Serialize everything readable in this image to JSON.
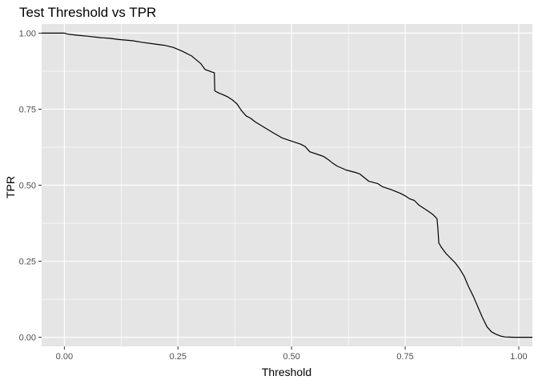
{
  "chart_data": {
    "type": "line",
    "title": "Test Threshold vs TPR",
    "xlabel": "Threshold",
    "ylabel": "TPR",
    "xlim": [
      -0.05,
      1.03
    ],
    "ylim": [
      -0.03,
      1.03
    ],
    "grid": true,
    "legend": "none",
    "x_ticks": [
      0.0,
      0.25,
      0.5,
      0.75,
      1.0
    ],
    "x_tick_labels": [
      "0.00",
      "0.25",
      "0.50",
      "0.75",
      "1.00"
    ],
    "y_ticks": [
      0.0,
      0.25,
      0.5,
      0.75,
      1.0
    ],
    "y_tick_labels": [
      "0.00",
      "0.25",
      "0.50",
      "0.75",
      "1.00"
    ],
    "colors": {
      "panel": "#e5e5e5",
      "grid": "#ffffff",
      "line": "#000000",
      "tick": "#333333"
    },
    "series": [
      {
        "values": [
          [
            -0.05,
            1.0
          ],
          [
            0.0,
            1.0
          ],
          [
            0.01,
            0.996
          ],
          [
            0.03,
            0.993
          ],
          [
            0.05,
            0.99
          ],
          [
            0.08,
            0.985
          ],
          [
            0.1,
            0.983
          ],
          [
            0.12,
            0.979
          ],
          [
            0.15,
            0.975
          ],
          [
            0.17,
            0.97
          ],
          [
            0.2,
            0.964
          ],
          [
            0.22,
            0.96
          ],
          [
            0.24,
            0.953
          ],
          [
            0.26,
            0.94
          ],
          [
            0.28,
            0.925
          ],
          [
            0.3,
            0.9
          ],
          [
            0.31,
            0.88
          ],
          [
            0.32,
            0.875
          ],
          [
            0.325,
            0.872
          ],
          [
            0.33,
            0.87
          ],
          [
            0.331,
            0.81
          ],
          [
            0.34,
            0.803
          ],
          [
            0.35,
            0.797
          ],
          [
            0.36,
            0.79
          ],
          [
            0.37,
            0.78
          ],
          [
            0.38,
            0.767
          ],
          [
            0.39,
            0.745
          ],
          [
            0.4,
            0.728
          ],
          [
            0.41,
            0.72
          ],
          [
            0.42,
            0.708
          ],
          [
            0.44,
            0.69
          ],
          [
            0.46,
            0.672
          ],
          [
            0.48,
            0.655
          ],
          [
            0.5,
            0.645
          ],
          [
            0.52,
            0.635
          ],
          [
            0.53,
            0.627
          ],
          [
            0.54,
            0.61
          ],
          [
            0.56,
            0.6
          ],
          [
            0.57,
            0.595
          ],
          [
            0.58,
            0.585
          ],
          [
            0.59,
            0.573
          ],
          [
            0.6,
            0.563
          ],
          [
            0.62,
            0.55
          ],
          [
            0.64,
            0.542
          ],
          [
            0.65,
            0.537
          ],
          [
            0.66,
            0.525
          ],
          [
            0.67,
            0.513
          ],
          [
            0.69,
            0.505
          ],
          [
            0.7,
            0.495
          ],
          [
            0.72,
            0.485
          ],
          [
            0.74,
            0.473
          ],
          [
            0.75,
            0.465
          ],
          [
            0.76,
            0.455
          ],
          [
            0.77,
            0.45
          ],
          [
            0.78,
            0.435
          ],
          [
            0.79,
            0.425
          ],
          [
            0.8,
            0.415
          ],
          [
            0.81,
            0.405
          ],
          [
            0.82,
            0.39
          ],
          [
            0.822,
            0.36
          ],
          [
            0.824,
            0.31
          ],
          [
            0.83,
            0.295
          ],
          [
            0.84,
            0.275
          ],
          [
            0.85,
            0.26
          ],
          [
            0.86,
            0.245
          ],
          [
            0.87,
            0.225
          ],
          [
            0.88,
            0.2
          ],
          [
            0.89,
            0.165
          ],
          [
            0.9,
            0.135
          ],
          [
            0.91,
            0.1
          ],
          [
            0.92,
            0.065
          ],
          [
            0.93,
            0.035
          ],
          [
            0.94,
            0.018
          ],
          [
            0.95,
            0.01
          ],
          [
            0.96,
            0.004
          ],
          [
            0.97,
            0.001
          ],
          [
            0.99,
            0.0
          ],
          [
            1.03,
            0.0
          ]
        ]
      }
    ]
  }
}
